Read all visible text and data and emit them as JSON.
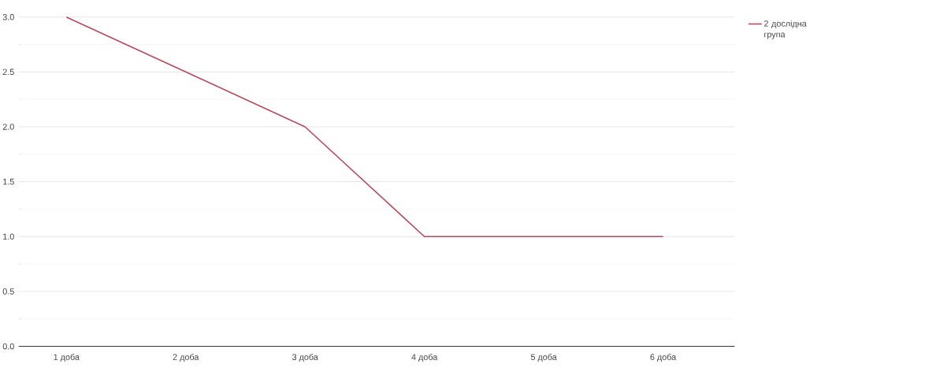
{
  "chart_data": {
    "type": "line",
    "categories": [
      "1 доба",
      "2 доба",
      "3 доба",
      "4 доба",
      "5 доба",
      "6 доба"
    ],
    "series": [
      {
        "name": "2 дослідна група",
        "color": "#b5485a",
        "values": [
          3,
          2.5,
          2,
          1,
          1,
          1
        ]
      }
    ],
    "ylim": [
      0,
      3
    ],
    "yticks": [
      {
        "value": 0,
        "label": "0.0"
      },
      0.5,
      {
        "value": 1,
        "label": "1.0"
      },
      1.5,
      {
        "value": 2,
        "label": "2.0"
      },
      2.5,
      {
        "value": 3,
        "label": "3.0"
      }
    ],
    "grid": "y",
    "legend": "top right",
    "marker": "none",
    "line_style": "solid"
  }
}
